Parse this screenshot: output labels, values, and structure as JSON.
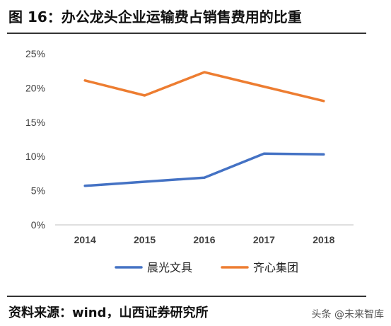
{
  "header": {
    "title": "图 16：办公龙头企业运输费占销售费用的比重"
  },
  "footer": {
    "source": "资料来源：wind，山西证券研究所",
    "watermark": "头条 @未来智库"
  },
  "chart_data": {
    "type": "line",
    "categories": [
      "2014",
      "2015",
      "2016",
      "2017",
      "2018"
    ],
    "series": [
      {
        "name": "晨光文具",
        "color": "#4472C4",
        "values": [
          5.7,
          6.3,
          6.9,
          10.4,
          10.3
        ]
      },
      {
        "name": "齐心集团",
        "color": "#ED7D31",
        "values": [
          21.1,
          18.9,
          22.3,
          20.2,
          18.1
        ]
      }
    ],
    "yticks": [
      "0%",
      "5%",
      "10%",
      "15%",
      "20%",
      "25%"
    ],
    "ylim": [
      0,
      25
    ],
    "grid": false,
    "legend_position": "bottom"
  }
}
